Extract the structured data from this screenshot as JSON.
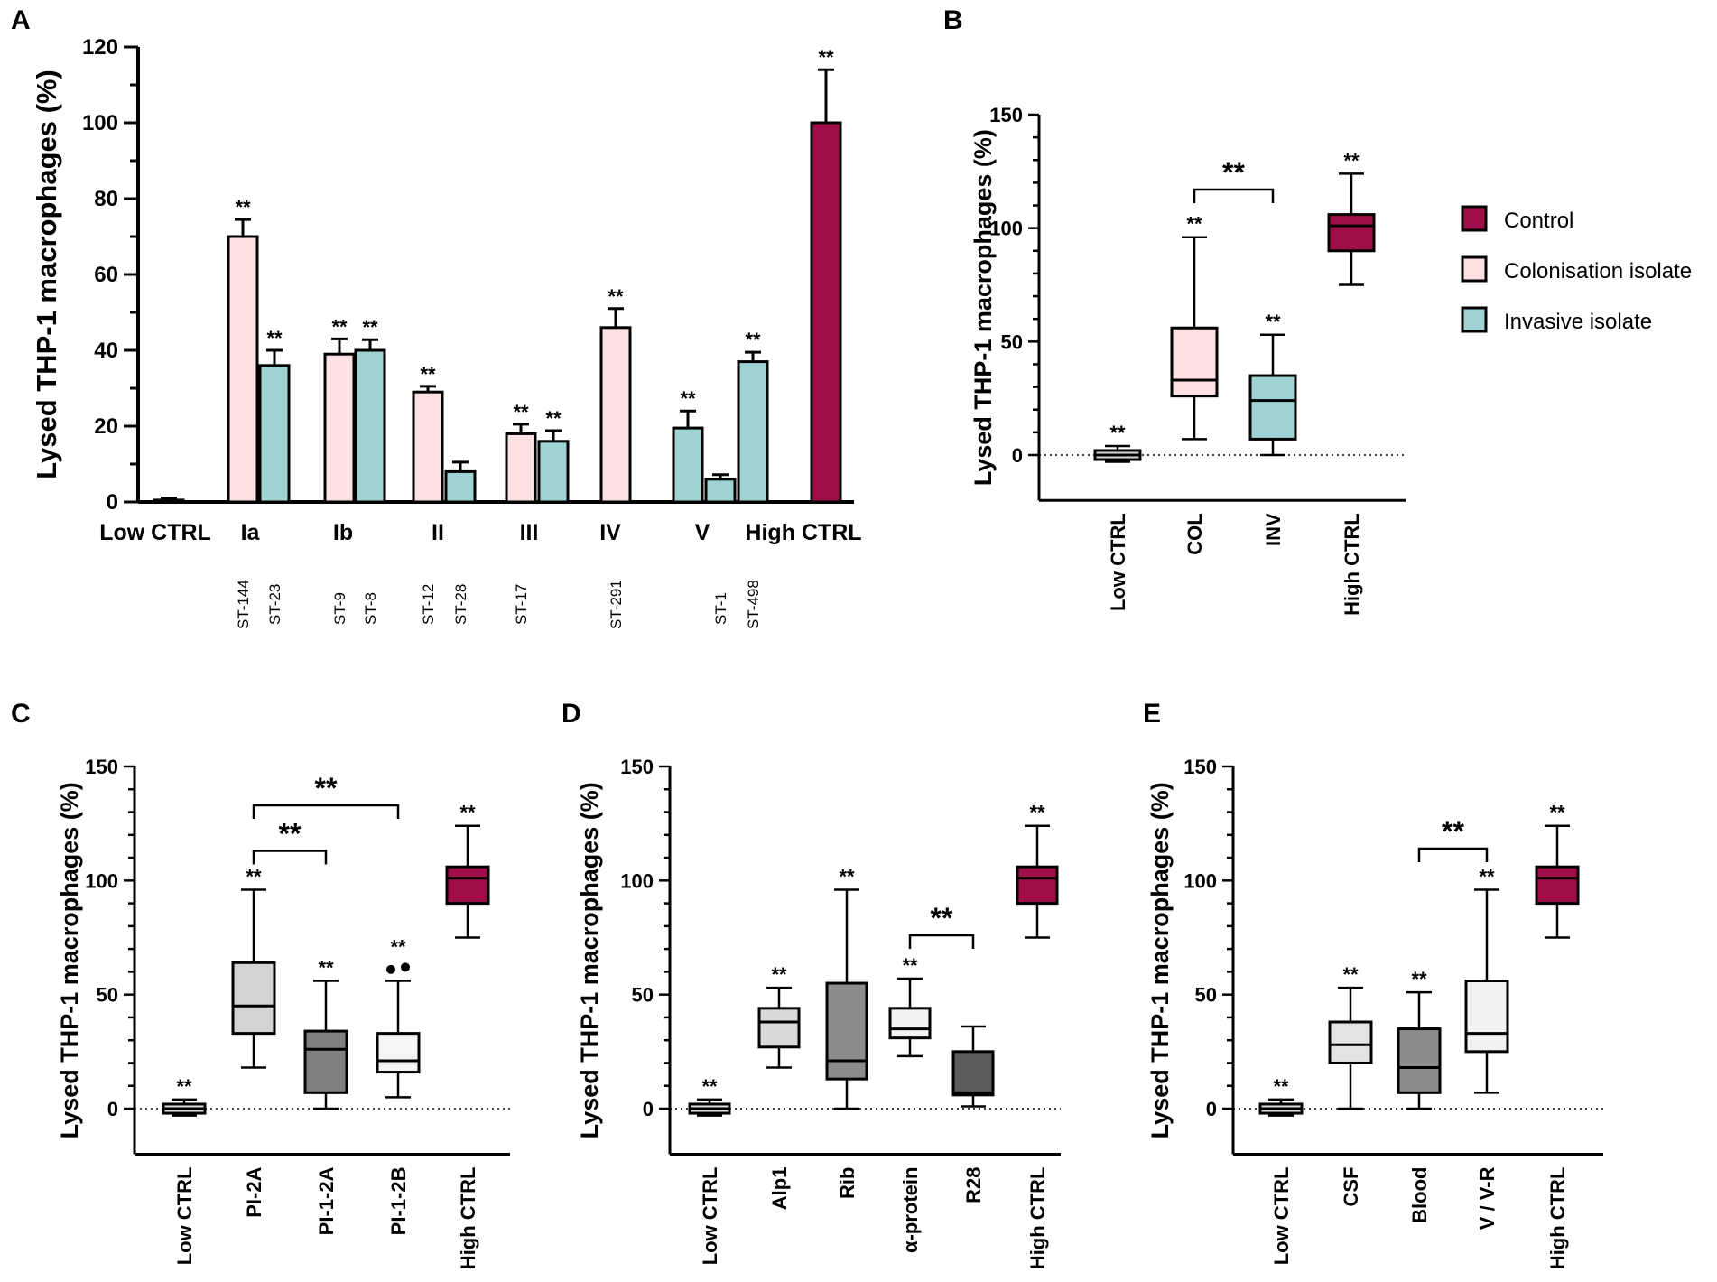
{
  "chart_data": [
    {
      "panel": "A",
      "type": "bar",
      "ylabel": "Lysed THP-1 macrophages (%)",
      "ylim": [
        0,
        120
      ],
      "yticks": [
        "0",
        "20",
        "40",
        "60",
        "80",
        "100",
        "120"
      ],
      "groups": [
        {
          "label": "Low CTRL",
          "bars": [
            {
              "strain": "",
              "value": 0.5,
              "err": 0.5,
              "kind": "control",
              "sig": ""
            }
          ]
        },
        {
          "label": "Ia",
          "bars": [
            {
              "strain": "ST-144",
              "value": 70,
              "err": 4.5,
              "kind": "colonisation",
              "sig": "**"
            },
            {
              "strain": "ST-23",
              "value": 36,
              "err": 4,
              "kind": "invasive",
              "sig": "**"
            }
          ]
        },
        {
          "label": "Ib",
          "bars": [
            {
              "strain": "ST-9",
              "value": 39,
              "err": 4,
              "kind": "colonisation",
              "sig": "**"
            },
            {
              "strain": "ST-8",
              "value": 40,
              "err": 2.8,
              "kind": "invasive",
              "sig": "**"
            }
          ]
        },
        {
          "label": "II",
          "bars": [
            {
              "strain": "ST-12",
              "value": 29,
              "err": 1.5,
              "kind": "colonisation",
              "sig": "**"
            },
            {
              "strain": "ST-28",
              "value": 8,
              "err": 2.5,
              "kind": "invasive",
              "sig": ""
            }
          ]
        },
        {
          "label": "III",
          "bars": [
            {
              "strain": "ST-17",
              "value": 18,
              "err": 2.5,
              "kind": "colonisation",
              "sig": "**"
            },
            {
              "strain": "",
              "value": 16,
              "err": 2.8,
              "kind": "invasive",
              "sig": "**"
            }
          ]
        },
        {
          "label": "IV",
          "bars": [
            {
              "strain": "ST-291",
              "value": 46,
              "err": 5,
              "kind": "colonisation",
              "sig": "**"
            }
          ]
        },
        {
          "label": "V",
          "bars": [
            {
              "strain": "",
              "value": 19.5,
              "err": 4.5,
              "kind": "invasive",
              "sig": "**"
            },
            {
              "strain": "ST-1",
              "value": 6,
              "err": 1.2,
              "kind": "invasive",
              "sig": ""
            },
            {
              "strain": "ST-498",
              "value": 37,
              "err": 2.5,
              "kind": "invasive",
              "sig": "**"
            }
          ]
        },
        {
          "label": "High CTRL",
          "bars": [
            {
              "strain": "",
              "value": 100,
              "err": 14,
              "kind": "control",
              "sig": "**"
            }
          ]
        }
      ]
    },
    {
      "panel": "B",
      "type": "boxplot",
      "ylabel": "Lysed THP-1 macrophages (%)",
      "ylim": [
        -20,
        150
      ],
      "yticks": [
        "0",
        "50",
        "100",
        "150"
      ],
      "categories": [
        "Low CTRL",
        "COL",
        "INV",
        "High CTRL"
      ],
      "boxes": [
        {
          "min": -3,
          "q1": -2,
          "median": 0,
          "q3": 2,
          "max": 4,
          "color": "#d9d9d9",
          "sig": "**"
        },
        {
          "min": 7,
          "q1": 26,
          "median": 33,
          "q3": 56,
          "max": 96,
          "color": "#fde0e2",
          "sig": "**"
        },
        {
          "min": 0,
          "q1": 7,
          "median": 24,
          "q3": 35,
          "max": 53,
          "color": "#9fd3d3",
          "sig": "**"
        },
        {
          "min": 75,
          "q1": 90,
          "median": 101,
          "q3": 106,
          "max": 124,
          "color": "#9e0f4a",
          "sig": "**"
        }
      ],
      "brackets": [
        {
          "from": 1,
          "to": 2,
          "level": 117,
          "label": "**"
        }
      ],
      "legend": [
        {
          "label": "Control",
          "color": "#9e0f4a"
        },
        {
          "label": "Colonisation isolate",
          "color": "#fde0e2"
        },
        {
          "label": "Invasive isolate",
          "color": "#9fd3d3"
        }
      ]
    },
    {
      "panel": "C",
      "type": "boxplot",
      "ylabel": "Lysed THP-1 macrophages (%)",
      "ylim": [
        -20,
        150
      ],
      "yticks": [
        "0",
        "50",
        "100",
        "150"
      ],
      "categories": [
        "Low CTRL",
        "PI-2A",
        "PI-1-2A",
        "PI-1-2B",
        "High CTRL"
      ],
      "boxes": [
        {
          "min": -3,
          "q1": -2,
          "median": 0,
          "q3": 2,
          "max": 4,
          "color": "#d9d9d9",
          "sig": "**"
        },
        {
          "min": 18,
          "q1": 33,
          "median": 45,
          "q3": 64,
          "max": 96,
          "color": "#d3d3d3",
          "sig": "**"
        },
        {
          "min": 0,
          "q1": 7,
          "median": 26,
          "q3": 34,
          "max": 56,
          "color": "#808080",
          "sig": "**"
        },
        {
          "min": 5,
          "q1": 16,
          "median": 21,
          "q3": 33,
          "max": 56,
          "color": "#f5f5f5",
          "sig": "**",
          "outliers": [
            61,
            62
          ]
        },
        {
          "min": 75,
          "q1": 90,
          "median": 101,
          "q3": 106,
          "max": 124,
          "color": "#9e0f4a",
          "sig": "**"
        }
      ],
      "brackets": [
        {
          "from": 1,
          "to": 2,
          "level": 113,
          "label": "**"
        },
        {
          "from": 1,
          "to": 3,
          "level": 133,
          "label": "**"
        }
      ]
    },
    {
      "panel": "D",
      "type": "boxplot",
      "ylabel": "Lysed THP-1 macrophages (%)",
      "ylim": [
        -20,
        150
      ],
      "yticks": [
        "0",
        "50",
        "100",
        "150"
      ],
      "categories": [
        "Low CTRL",
        "Alp1",
        "Rib",
        "α-protein",
        "R28",
        "High CTRL"
      ],
      "boxes": [
        {
          "min": -3,
          "q1": -2,
          "median": 0,
          "q3": 2,
          "max": 4,
          "color": "#d9d9d9",
          "sig": "**"
        },
        {
          "min": 18,
          "q1": 27,
          "median": 38,
          "q3": 44,
          "max": 53,
          "color": "#d9d9d9",
          "sig": "**"
        },
        {
          "min": 0,
          "q1": 13,
          "median": 21,
          "q3": 55,
          "max": 96,
          "color": "#8c8c8c",
          "sig": "**"
        },
        {
          "min": 23,
          "q1": 31,
          "median": 35,
          "q3": 44,
          "max": 57,
          "color": "#f2f2f2",
          "sig": "**"
        },
        {
          "min": 1,
          "q1": 6,
          "median": 7,
          "q3": 25,
          "max": 36,
          "color": "#5c5c5c",
          "sig": ""
        },
        {
          "min": 75,
          "q1": 90,
          "median": 101,
          "q3": 106,
          "max": 124,
          "color": "#9e0f4a",
          "sig": "**"
        }
      ],
      "brackets": [
        {
          "from": 3,
          "to": 4,
          "level": 76,
          "label": "**"
        }
      ]
    },
    {
      "panel": "E",
      "type": "boxplot",
      "ylabel": "Lysed THP-1 macrophages (%)",
      "ylim": [
        -20,
        150
      ],
      "yticks": [
        "0",
        "50",
        "100",
        "150"
      ],
      "categories": [
        "Low CTRL",
        "CSF",
        "Blood",
        "V / V-R",
        "High CTRL"
      ],
      "boxes": [
        {
          "min": -3,
          "q1": -2,
          "median": 0,
          "q3": 2,
          "max": 4,
          "color": "#d9d9d9",
          "sig": "**"
        },
        {
          "min": 0,
          "q1": 20,
          "median": 28,
          "q3": 38,
          "max": 53,
          "color": "#e3e3e3",
          "sig": "**"
        },
        {
          "min": 0,
          "q1": 7,
          "median": 18,
          "q3": 35,
          "max": 51,
          "color": "#8c8c8c",
          "sig": "**"
        },
        {
          "min": 7,
          "q1": 25,
          "median": 33,
          "q3": 56,
          "max": 96,
          "color": "#f2f2f2",
          "sig": "**"
        },
        {
          "min": 75,
          "q1": 90,
          "median": 101,
          "q3": 106,
          "max": 124,
          "color": "#9e0f4a",
          "sig": "**"
        }
      ],
      "brackets": [
        {
          "from": 2,
          "to": 3,
          "level": 114,
          "label": "**"
        }
      ]
    }
  ],
  "colors": {
    "control": "#9e0f4a",
    "colonisation": "#fde0e2",
    "invasive": "#9fd3d3"
  },
  "panel_labels": [
    "A",
    "B",
    "C",
    "D",
    "E"
  ]
}
